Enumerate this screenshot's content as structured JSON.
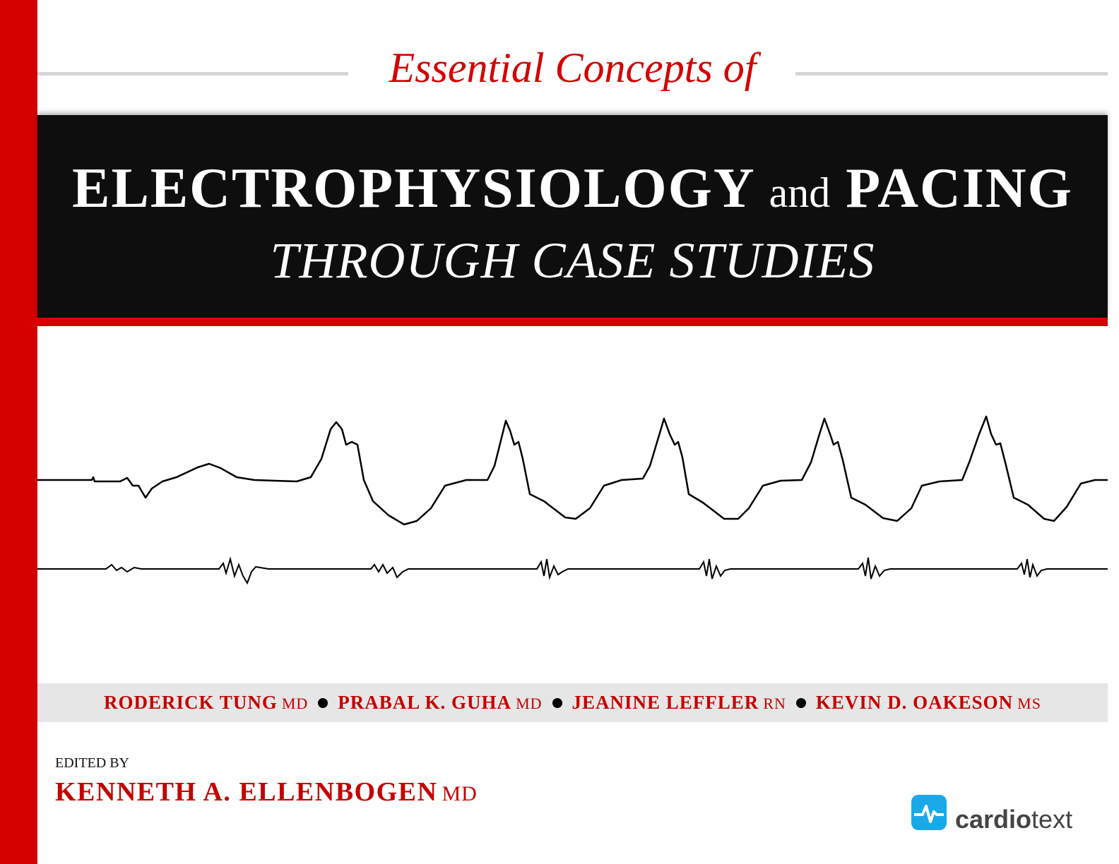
{
  "header": {
    "series_title": "Essential Concepts of"
  },
  "title": {
    "word1": "ELECTROPHYSIOLOGY",
    "joiner": "and",
    "word2": "PACING",
    "subtitle": "THROUGH CASE STUDIES"
  },
  "authors": [
    {
      "name": "RODERICK TUNG",
      "credential": "MD"
    },
    {
      "name": "PRABAL K. GUHA",
      "credential": "MD"
    },
    {
      "name": "JEANINE LEFFLER",
      "credential": "RN"
    },
    {
      "name": "KEVIN D. OAKESON",
      "credential": "MS"
    }
  ],
  "editor": {
    "label": "EDITED BY",
    "name": "KENNETH A. ELLENBOGEN",
    "credential": "MD"
  },
  "publisher": {
    "part1": "cardio",
    "part2": "text"
  }
}
